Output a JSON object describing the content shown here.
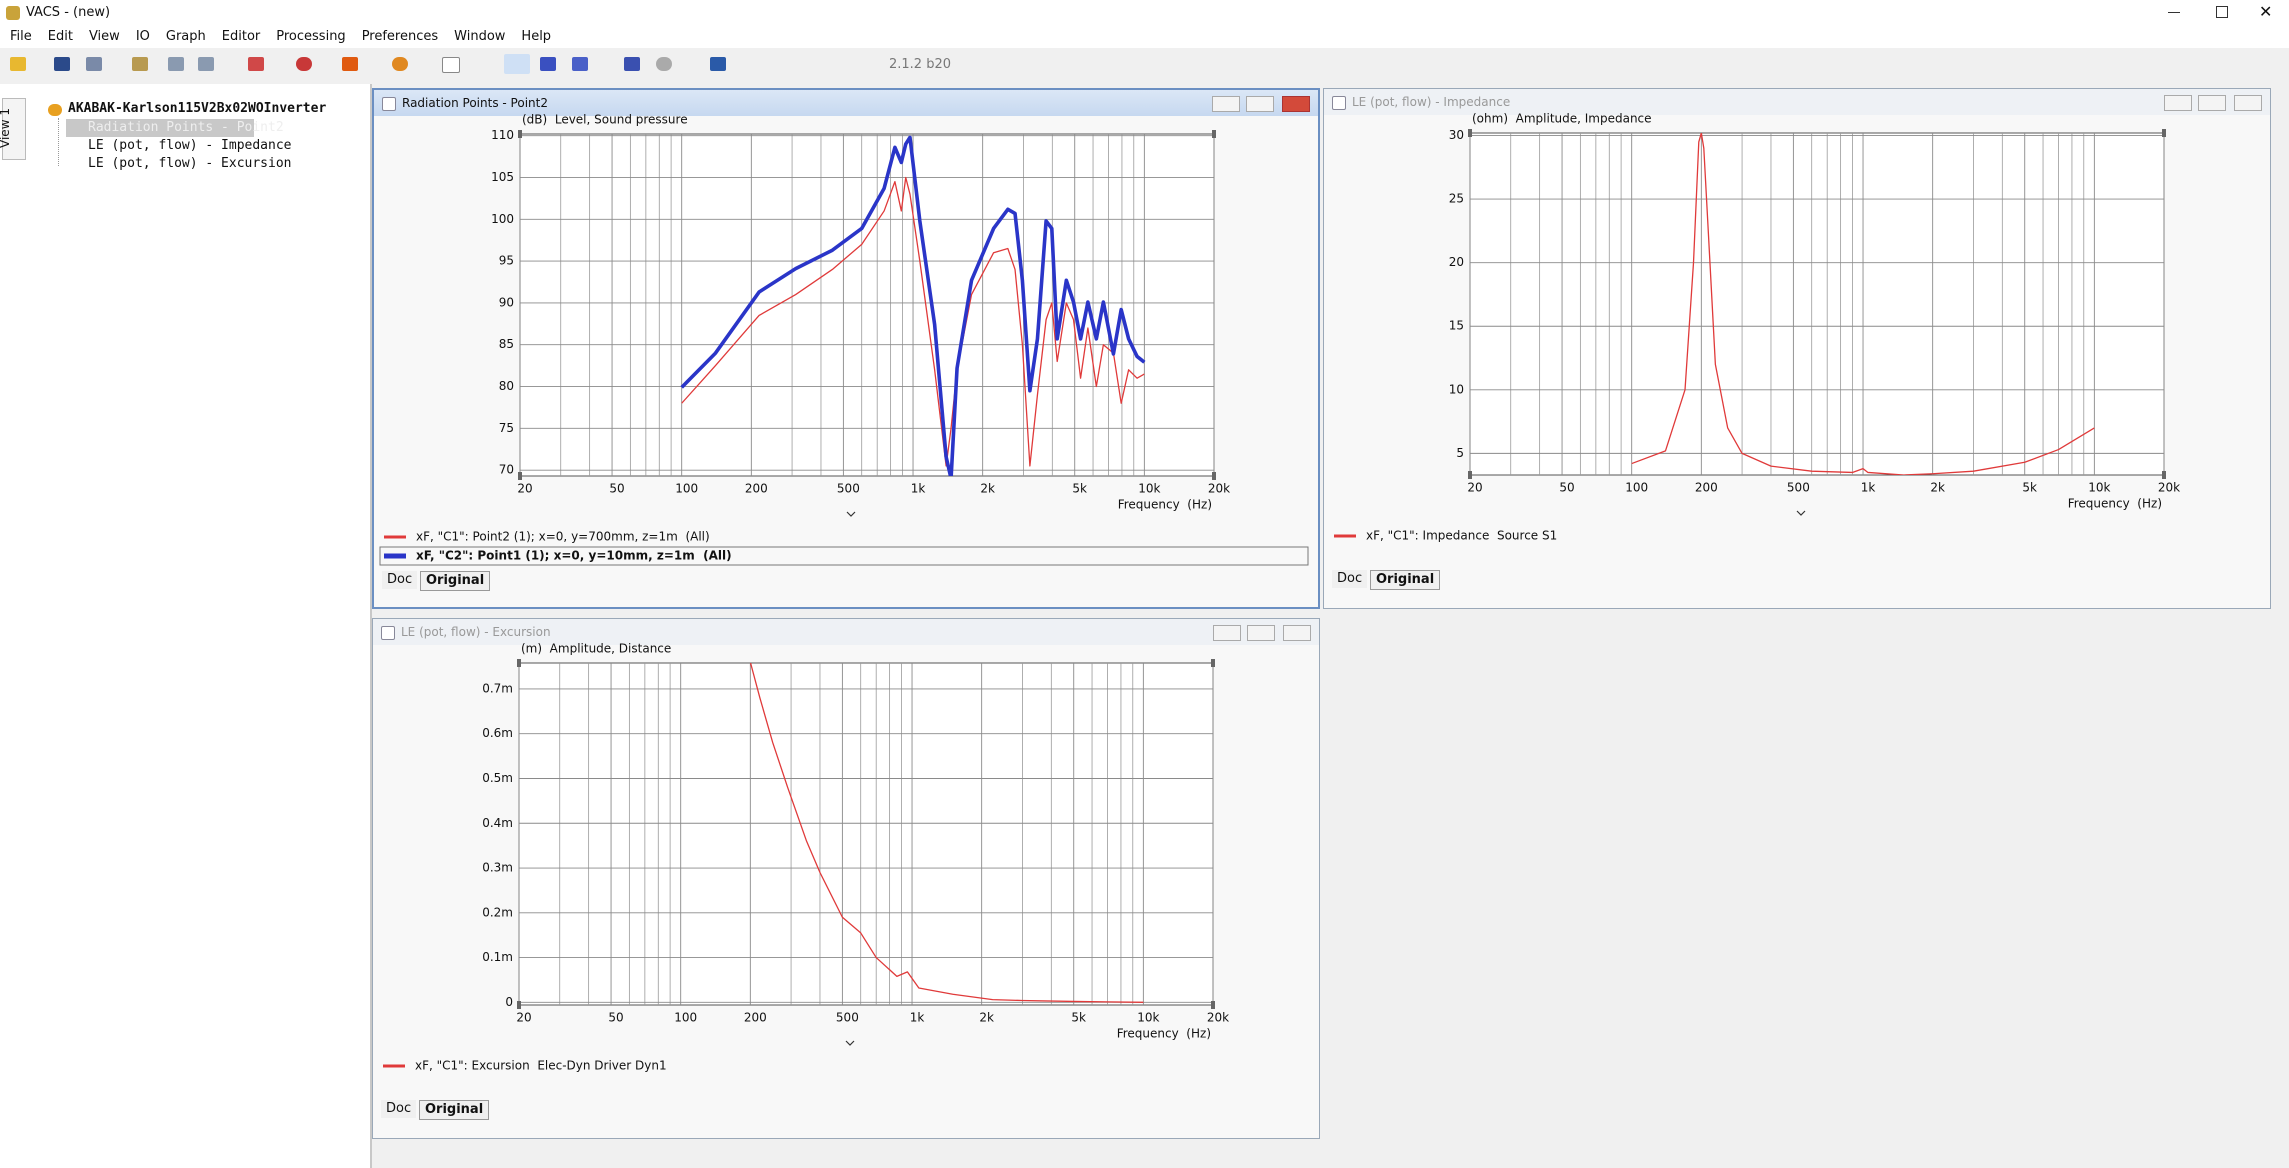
{
  "app": {
    "title": "VACS - (new)",
    "menu": [
      "File",
      "Edit",
      "View",
      "IO",
      "Graph",
      "Editor",
      "Processing",
      "Preferences",
      "Window",
      "Help"
    ],
    "version": "2.1.2 b20"
  },
  "tree": {
    "tab": "View 1",
    "root": "AKABAK-Karlson115V2Bx02WOInverter",
    "items": [
      "Radiation Points - Point2",
      "LE (pot, flow) - Impedance",
      "LE (pot, flow) - Excursion"
    ]
  },
  "windows": [
    {
      "title": "Radiation Points - Point2",
      "buttons": [
        "Doc",
        "Original"
      ]
    },
    {
      "title": "LE (pot, flow) - Impedance",
      "buttons": [
        "Doc",
        "Original"
      ]
    },
    {
      "title": "LE (pot, flow) - Excursion",
      "buttons": [
        "Doc",
        "Original"
      ]
    }
  ],
  "chart_data": [
    {
      "type": "line",
      "ylabel": "(dB)  Level, Sound pressure",
      "xlabel": "Frequency  (Hz)",
      "log_x": true,
      "grid": true,
      "xlim": [
        20,
        20000
      ],
      "xticks": [
        20,
        50,
        100,
        200,
        500,
        {
          "value": 1000,
          "label": "1k"
        },
        {
          "value": 2000,
          "label": "2k"
        },
        {
          "value": 5000,
          "label": "5k"
        },
        {
          "value": 10000,
          "label": "10k"
        },
        {
          "value": 20000,
          "label": "20k"
        }
      ],
      "xgrid_minor": [
        30,
        40,
        60,
        70,
        80,
        90,
        300,
        400,
        600,
        700,
        800,
        900,
        3000,
        4000,
        6000,
        7000,
        8000,
        9000
      ],
      "ylim": [
        69.3,
        110.2
      ],
      "yticks": [
        70,
        75,
        80,
        85,
        90,
        95,
        100,
        105,
        110
      ],
      "x": [
        100,
        140,
        216,
        311,
        448,
        600,
        750,
        835,
        890,
        930,
        970,
        1070,
        1240,
        1390,
        1460,
        1550,
        1790,
        2230,
        2570,
        2760,
        2970,
        3200,
        3450,
        3760,
        3980,
        4200,
        4600,
        4940,
        5300,
        5700,
        6200,
        6650,
        7350,
        7940,
        8550,
        9300,
        10000
      ],
      "series": [
        {
          "name": "xF, \"C1\": Point2 (1); x=0, y=700mm, z=1m  (All)",
          "color": "#e03a3a",
          "width": 1.3,
          "selected": false,
          "values": [
            78,
            82.5,
            88.5,
            91,
            94,
            97,
            101,
            104.5,
            101,
            105,
            103,
            95,
            82,
            70.5,
            75,
            82,
            91,
            96,
            96.5,
            94,
            85,
            70.5,
            79,
            88,
            90,
            83,
            90,
            88,
            81,
            87,
            80,
            85,
            84,
            78,
            82,
            81,
            81.5
          ]
        },
        {
          "name": "xF, \"C2\": Point1 (1); x=0, y=10mm, z=1m  (All)",
          "color": "#2a35c8",
          "width": 3.6,
          "selected": true,
          "values": [
            79.9,
            84,
            91.3,
            94.1,
            96.3,
            98.9,
            103.7,
            108.6,
            106.8,
            109,
            109.8,
            99.8,
            87.4,
            71.6,
            69,
            82.2,
            92.7,
            98.9,
            101.2,
            100.7,
            92.7,
            79.5,
            85.7,
            99.8,
            98.9,
            85.7,
            92.7,
            90.1,
            85.7,
            90.1,
            85.7,
            90.1,
            83.9,
            89.2,
            85.7,
            83.6,
            82.9
          ]
        }
      ]
    },
    {
      "type": "line",
      "ylabel": "(ohm)  Amplitude, Impedance",
      "xlabel": "Frequency  (Hz)",
      "log_x": true,
      "grid": true,
      "xlim": [
        20,
        20000
      ],
      "xticks": [
        20,
        50,
        100,
        200,
        500,
        {
          "value": 1000,
          "label": "1k"
        },
        {
          "value": 2000,
          "label": "2k"
        },
        {
          "value": 5000,
          "label": "5k"
        },
        {
          "value": 10000,
          "label": "10k"
        },
        {
          "value": 20000,
          "label": "20k"
        }
      ],
      "xgrid_minor": [
        30,
        40,
        60,
        70,
        80,
        90,
        300,
        400,
        600,
        700,
        800,
        900,
        3000,
        4000,
        6000,
        7000,
        8000,
        9000
      ],
      "ylim": [
        3.3,
        30.2
      ],
      "yticks": [
        5,
        10,
        15,
        20,
        25,
        30
      ],
      "x": [
        100,
        140,
        170,
        185,
        195,
        200,
        205,
        215,
        230,
        260,
        300,
        400,
        600,
        900,
        1000,
        1050,
        1500,
        2000,
        3000,
        5000,
        7000,
        10000
      ],
      "series": [
        {
          "name": "xF, \"C1\": Impedance  Source S1",
          "color": "#e03a3a",
          "width": 1.3,
          "selected": false,
          "values": [
            4.2,
            5.2,
            10,
            20,
            29.5,
            30.2,
            29,
            22,
            12,
            7,
            5,
            4,
            3.6,
            3.5,
            3.8,
            3.5,
            3.3,
            3.4,
            3.6,
            4.3,
            5.3,
            7
          ]
        }
      ]
    },
    {
      "type": "line",
      "ylabel": "(m)  Amplitude, Distance",
      "xlabel": "Frequency  (Hz)",
      "log_x": true,
      "grid": true,
      "xlim": [
        20,
        20000
      ],
      "xticks": [
        20,
        50,
        100,
        200,
        500,
        {
          "value": 1000,
          "label": "1k"
        },
        {
          "value": 2000,
          "label": "2k"
        },
        {
          "value": 5000,
          "label": "5k"
        },
        {
          "value": 10000,
          "label": "10k"
        },
        {
          "value": 20000,
          "label": "20k"
        }
      ],
      "xgrid_minor": [
        30,
        40,
        60,
        70,
        80,
        90,
        300,
        400,
        600,
        700,
        800,
        900,
        3000,
        4000,
        6000,
        7000,
        8000,
        9000
      ],
      "ylim": [
        -6e-06,
        0.000758
      ],
      "yticks": [
        0,
        {
          "value": 0.0001,
          "label": "0.1m"
        },
        {
          "value": 0.0002,
          "label": "0.2m"
        },
        {
          "value": 0.0003,
          "label": "0.3m"
        },
        {
          "value": 0.0004,
          "label": "0.4m"
        },
        {
          "value": 0.0005,
          "label": "0.5m"
        },
        {
          "value": 0.0006,
          "label": "0.6m"
        },
        {
          "value": 0.0007,
          "label": "0.7m"
        }
      ],
      "x": [
        200,
        220,
        250,
        290,
        350,
        400,
        500,
        600,
        700,
        860,
        955,
        1070,
        1500,
        2230,
        3000,
        5000,
        7000,
        10000
      ],
      "series": [
        {
          "name": "xF, \"C1\": Excursion  Elec-Dyn Driver Dyn1",
          "color": "#e03a3a",
          "width": 1.3,
          "selected": false,
          "values": [
            0.00076,
            0.00068,
            0.00058,
            0.00048,
            0.00036,
            0.00029,
            0.00019,
            0.000155,
            0.0001,
            5.8e-05,
            6.8e-05,
            3.2e-05,
            1.8e-05,
            6e-06,
            4e-06,
            2e-06,
            1e-06,
            0
          ]
        }
      ]
    }
  ]
}
